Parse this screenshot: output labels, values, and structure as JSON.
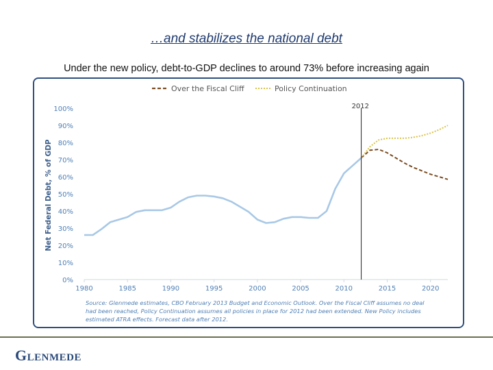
{
  "slide": {
    "title": "…and stabilizes the national debt",
    "subtitle": "Under the new policy, debt-to-GDP declines to around 73% before increasing again",
    "logo": "Glenmede"
  },
  "colors": {
    "fiscal_cliff": "#7a4a1f",
    "policy_continuation": "#d9c24a",
    "history": "#a8c8e6",
    "axis_text": "#4f7fb5",
    "frame": "#2f4f7f"
  },
  "chart_data": {
    "type": "line",
    "ylabel": "Net Federal Debt, % of GDP",
    "xlim": [
      1980,
      2022
    ],
    "ylim": [
      0,
      100
    ],
    "x_ticks": [
      1980,
      1985,
      1990,
      1995,
      2000,
      2005,
      2010,
      2015,
      2020
    ],
    "y_ticks": [
      "0%",
      "10%",
      "20%",
      "30%",
      "40%",
      "50%",
      "60%",
      "70%",
      "80%",
      "90%",
      "100%"
    ],
    "marker": {
      "x": 2012,
      "label": "2012"
    },
    "legend": [
      "Over the Fiscal Cliff",
      "Policy Continuation"
    ],
    "series": [
      {
        "name": "Historical",
        "x": [
          1980,
          1981,
          1982,
          1983,
          1984,
          1985,
          1986,
          1987,
          1988,
          1989,
          1990,
          1991,
          1992,
          1993,
          1994,
          1995,
          1996,
          1997,
          1998,
          1999,
          2000,
          2001,
          2002,
          2003,
          2004,
          2005,
          2006,
          2007,
          2008,
          2009,
          2010,
          2011,
          2012
        ],
        "y": [
          26,
          26,
          29.5,
          33.5,
          35,
          36.5,
          39.5,
          40.5,
          40.5,
          40.5,
          42,
          45.5,
          48,
          49,
          49,
          48.5,
          47.5,
          45.5,
          42.5,
          39.5,
          35,
          33,
          33.5,
          35.5,
          36.5,
          36.5,
          36,
          36,
          40,
          53,
          62,
          66.5,
          71
        ]
      },
      {
        "name": "Over the Fiscal Cliff",
        "x": [
          2012,
          2013,
          2014,
          2015,
          2016,
          2017,
          2018,
          2019,
          2020,
          2021,
          2022
        ],
        "y": [
          71,
          75.5,
          76,
          74,
          71,
          68,
          65.5,
          63.5,
          61.5,
          60,
          58.5
        ]
      },
      {
        "name": "Policy Continuation",
        "x": [
          2012,
          2013,
          2014,
          2015,
          2016,
          2017,
          2018,
          2019,
          2020,
          2021,
          2022
        ],
        "y": [
          71,
          77.5,
          81.5,
          82.5,
          82.5,
          82.5,
          83,
          84,
          85.5,
          87.5,
          90
        ]
      }
    ],
    "source_note": [
      "Source: Glenmede estimates, CBO February 2013 Budget and Economic Outlook. Over the Fiscal Cliff assumes no deal",
      "had been reached, Policy Continuation assumes all policies in place for 2012 had been extended. New Policy includes",
      "estimated ATRA effects. Forecast data after 2012."
    ]
  }
}
